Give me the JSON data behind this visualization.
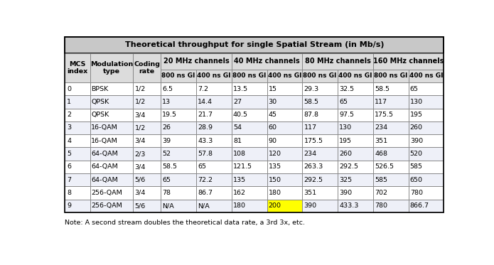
{
  "title": "Theoretical throughput for single Spatial Stream (in Mb/s)",
  "note": "Note: A second stream doubles the theoretical data rate, a 3rd 3x, etc.",
  "rows": [
    [
      "0",
      "BPSK",
      "1/2",
      "6.5",
      "7.2",
      "13.5",
      "15",
      "29.3",
      "32.5",
      "58.5",
      "65"
    ],
    [
      "1",
      "QPSK",
      "1/2",
      "13",
      "14.4",
      "27",
      "30",
      "58.5",
      "65",
      "117",
      "130"
    ],
    [
      "2",
      "QPSK",
      "3/4",
      "19.5",
      "21.7",
      "40.5",
      "45",
      "87.8",
      "97.5",
      "175.5",
      "195"
    ],
    [
      "3",
      "16-QAM",
      "1/2",
      "26",
      "28.9",
      "54",
      "60",
      "117",
      "130",
      "234",
      "260"
    ],
    [
      "4",
      "16-QAM",
      "3/4",
      "39",
      "43.3",
      "81",
      "90",
      "175.5",
      "195",
      "351",
      "390"
    ],
    [
      "5",
      "64-QAM",
      "2/3",
      "52",
      "57.8",
      "108",
      "120",
      "234",
      "260",
      "468",
      "520"
    ],
    [
      "6",
      "64-QAM",
      "3/4",
      "58.5",
      "65",
      "121.5",
      "135",
      "263.3",
      "292.5",
      "526.5",
      "585"
    ],
    [
      "7",
      "64-QAM",
      "5/6",
      "65",
      "72.2",
      "135",
      "150",
      "292.5",
      "325",
      "585",
      "650"
    ],
    [
      "8",
      "256-QAM",
      "3/4",
      "78",
      "86.7",
      "162",
      "180",
      "351",
      "390",
      "702",
      "780"
    ],
    [
      "9",
      "256-QAM",
      "5/6",
      "N/A",
      "N/A",
      "180",
      "200",
      "390",
      "433.3",
      "780",
      "866.7"
    ]
  ],
  "highlighted_cell_row": 9,
  "highlighted_cell_col": 6,
  "highlight_color": "#FFFF00",
  "title_bg": "#C8C8C8",
  "header_bg": "#DCDCDC",
  "row_bg_white": "#FFFFFF",
  "row_bg_light": "#EEF0F8",
  "grid_color": "#808080",
  "col_widths_rel": [
    3.2,
    5.5,
    3.5,
    4.5,
    4.5,
    4.5,
    4.5,
    4.5,
    4.5,
    4.5,
    4.5
  ],
  "fig_width": 6.95,
  "fig_height": 3.73,
  "dpi": 100
}
